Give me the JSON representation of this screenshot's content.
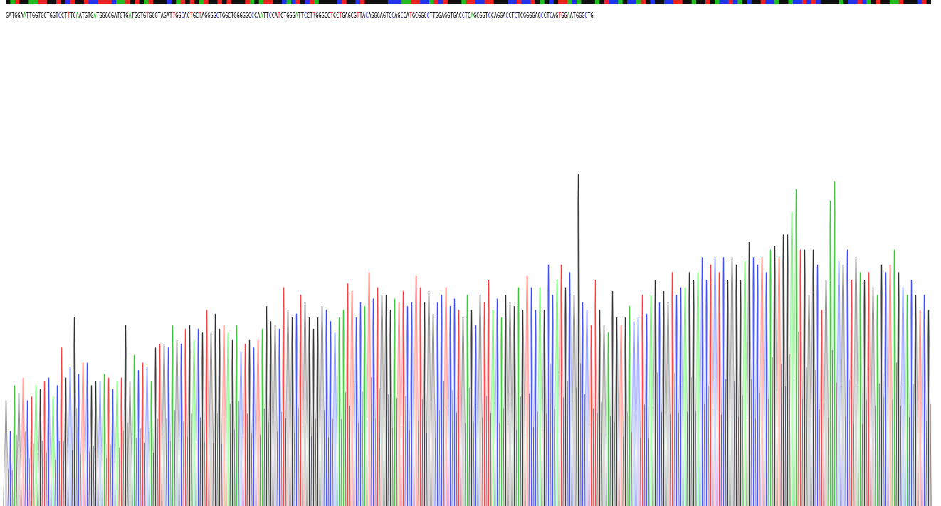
{
  "colors": {
    "A": "#22bb22",
    "C": "#2233ee",
    "G": "#111111",
    "T": "#ee2222"
  },
  "sequence": "GATGGAATTGGTGCTGGTCCTTTCAATGTGATGGGCGATGTGATGGTGTGGGTAGATTGGCACTGCTAGGGGCTGGCTGGGGGCCCAATTCCATCTGGGATTCCTTGGGCCTCCTGAGCGTTACAGGGAGTCCAGCCATGCGGCCTTGGAGGTGACCTCAGCGGTCCAGGACCTCTCGGGGAGCCTCAGTGGAATGGGCTG",
  "chart_data": {
    "type": "line",
    "title": "",
    "xlabel": "",
    "ylabel": "",
    "legend": "none",
    "grid": false,
    "channels": [
      "A",
      "C",
      "G",
      "T"
    ],
    "xlim": [
      0,
      1300
    ],
    "ylim": [
      0,
      1000
    ],
    "peaks": [
      [
        0.5,
        "G",
        280
      ],
      [
        6.5,
        "C",
        200
      ],
      [
        12.5,
        "A",
        320
      ],
      [
        18.5,
        "G",
        300
      ],
      [
        24.5,
        "T",
        340
      ],
      [
        30.5,
        "C",
        280
      ],
      [
        36.5,
        "T",
        290
      ],
      [
        42.5,
        "A",
        320
      ],
      [
        48.5,
        "G",
        310
      ],
      [
        54.5,
        "T",
        330
      ],
      [
        60.5,
        "C",
        340
      ],
      [
        66.5,
        "A",
        290
      ],
      [
        72.5,
        "C",
        320
      ],
      [
        78.5,
        "T",
        420
      ],
      [
        84.5,
        "G",
        340
      ],
      [
        90.5,
        "C",
        370
      ],
      [
        96.5,
        "G",
        500
      ],
      [
        102.5,
        "C",
        350
      ],
      [
        108.5,
        "T",
        380
      ],
      [
        114.5,
        "C",
        380
      ],
      [
        120.5,
        "G",
        320
      ],
      [
        126.5,
        "G",
        330
      ],
      [
        132.5,
        "C",
        330
      ],
      [
        138.5,
        "A",
        350
      ],
      [
        144.5,
        "T",
        340
      ],
      [
        150.5,
        "C",
        310
      ],
      [
        156.5,
        "A",
        330
      ],
      [
        162.5,
        "T",
        340
      ],
      [
        168.5,
        "G",
        480
      ],
      [
        174.5,
        "G",
        330
      ],
      [
        180.5,
        "A",
        400
      ],
      [
        186.5,
        "C",
        360
      ],
      [
        192.5,
        "T",
        380
      ],
      [
        198.5,
        "C",
        370
      ],
      [
        204.5,
        "A",
        330
      ],
      [
        210.5,
        "G",
        420
      ],
      [
        216.5,
        "T",
        430
      ],
      [
        222.5,
        "G",
        430
      ],
      [
        228.5,
        "C",
        420
      ],
      [
        234.5,
        "A",
        480
      ],
      [
        240.5,
        "G",
        440
      ],
      [
        246.5,
        "C",
        430
      ],
      [
        252.5,
        "T",
        470
      ],
      [
        258.5,
        "G",
        480
      ],
      [
        264.5,
        "A",
        440
      ],
      [
        270.5,
        "C",
        470
      ],
      [
        276.5,
        "G",
        460
      ],
      [
        282.5,
        "T",
        520
      ],
      [
        288.5,
        "G",
        460
      ],
      [
        294.5,
        "G",
        510
      ],
      [
        300.5,
        "G",
        470
      ],
      [
        306.5,
        "T",
        480
      ],
      [
        312.5,
        "A",
        460
      ],
      [
        318.5,
        "G",
        440
      ],
      [
        324.5,
        "A",
        480
      ],
      [
        330.5,
        "C",
        410
      ],
      [
        336.5,
        "T",
        430
      ],
      [
        342.5,
        "G",
        440
      ],
      [
        348.5,
        "C",
        420
      ],
      [
        354.5,
        "T",
        440
      ],
      [
        360.5,
        "A",
        470
      ],
      [
        366.5,
        "G",
        530
      ],
      [
        372.5,
        "G",
        490
      ],
      [
        378.5,
        "G",
        480
      ],
      [
        384.5,
        "C",
        470
      ],
      [
        390.5,
        "T",
        580
      ],
      [
        396.5,
        "G",
        520
      ],
      [
        402.5,
        "G",
        500
      ],
      [
        408.5,
        "C",
        510
      ],
      [
        414.5,
        "T",
        560
      ],
      [
        420.5,
        "G",
        540
      ],
      [
        426.5,
        "G",
        500
      ],
      [
        432.5,
        "G",
        470
      ],
      [
        438.5,
        "G",
        500
      ],
      [
        444.5,
        "G",
        530
      ],
      [
        450.5,
        "C",
        520
      ],
      [
        456.5,
        "C",
        490
      ],
      [
        462.5,
        "C",
        460
      ],
      [
        468.5,
        "A",
        500
      ],
      [
        474.5,
        "A",
        520
      ],
      [
        480.5,
        "T",
        590
      ],
      [
        486.5,
        "T",
        570
      ],
      [
        492.5,
        "C",
        500
      ],
      [
        498.5,
        "C",
        540
      ],
      [
        504.5,
        "A",
        530
      ],
      [
        510.5,
        "T",
        620
      ],
      [
        516.5,
        "C",
        550
      ],
      [
        522.5,
        "T",
        580
      ],
      [
        528.5,
        "G",
        560
      ],
      [
        534.5,
        "G",
        560
      ],
      [
        540.5,
        "G",
        520
      ],
      [
        546.5,
        "A",
        550
      ],
      [
        552.5,
        "T",
        540
      ],
      [
        558.5,
        "T",
        570
      ],
      [
        564.5,
        "C",
        530
      ],
      [
        570.5,
        "C",
        540
      ],
      [
        576.5,
        "T",
        610
      ],
      [
        582.5,
        "T",
        580
      ],
      [
        588.5,
        "G",
        540
      ],
      [
        594.5,
        "G",
        570
      ],
      [
        600.5,
        "G",
        510
      ],
      [
        606.5,
        "C",
        540
      ],
      [
        612.5,
        "C",
        560
      ],
      [
        618.5,
        "T",
        580
      ],
      [
        624.5,
        "C",
        530
      ],
      [
        630.5,
        "C",
        550
      ],
      [
        636.5,
        "T",
        520
      ],
      [
        642.5,
        "G",
        500
      ],
      [
        648.5,
        "A",
        560
      ],
      [
        654.5,
        "G",
        520
      ],
      [
        660.5,
        "C",
        480
      ],
      [
        666.5,
        "G",
        560
      ],
      [
        672.5,
        "T",
        540
      ],
      [
        678.5,
        "T",
        600
      ],
      [
        684.5,
        "A",
        520
      ],
      [
        690.5,
        "C",
        550
      ],
      [
        696.5,
        "A",
        500
      ],
      [
        702.5,
        "G",
        560
      ],
      [
        708.5,
        "G",
        540
      ],
      [
        714.5,
        "G",
        530
      ],
      [
        720.5,
        "A",
        580
      ],
      [
        726.5,
        "G",
        520
      ],
      [
        732.5,
        "T",
        610
      ],
      [
        738.5,
        "C",
        580
      ],
      [
        744.5,
        "C",
        520
      ],
      [
        750.5,
        "A",
        580
      ],
      [
        756.5,
        "G",
        520
      ],
      [
        762.5,
        "C",
        640
      ],
      [
        768.5,
        "C",
        560
      ],
      [
        774.5,
        "A",
        600
      ],
      [
        780.5,
        "T",
        640
      ],
      [
        786.5,
        "G",
        580
      ],
      [
        792.5,
        "C",
        620
      ],
      [
        798.5,
        "G",
        560
      ],
      [
        804.5,
        "G",
        880
      ],
      [
        810.5,
        "C",
        540
      ],
      [
        816.5,
        "C",
        520
      ],
      [
        822.5,
        "T",
        480
      ],
      [
        828.5,
        "T",
        600
      ],
      [
        834.5,
        "G",
        520
      ],
      [
        840.5,
        "G",
        480
      ],
      [
        846.5,
        "A",
        460
      ],
      [
        852.5,
        "G",
        570
      ],
      [
        858.5,
        "G",
        500
      ],
      [
        864.5,
        "T",
        480
      ],
      [
        870.5,
        "G",
        500
      ],
      [
        876.5,
        "A",
        530
      ],
      [
        882.5,
        "C",
        490
      ],
      [
        888.5,
        "C",
        500
      ],
      [
        894.5,
        "T",
        560
      ],
      [
        900.5,
        "C",
        510
      ],
      [
        906.5,
        "A",
        560
      ],
      [
        912.5,
        "G",
        600
      ],
      [
        918.5,
        "C",
        540
      ],
      [
        924.5,
        "G",
        570
      ],
      [
        930.5,
        "G",
        540
      ],
      [
        936.5,
        "T",
        620
      ],
      [
        942.5,
        "C",
        560
      ],
      [
        948.5,
        "C",
        580
      ],
      [
        954.5,
        "A",
        580
      ],
      [
        960.5,
        "G",
        620
      ],
      [
        966.5,
        "G",
        600
      ],
      [
        972.5,
        "A",
        620
      ],
      [
        978.5,
        "C",
        660
      ],
      [
        984.5,
        "C",
        600
      ],
      [
        990.5,
        "T",
        640
      ],
      [
        996.5,
        "C",
        660
      ],
      [
        1002.5,
        "T",
        620
      ],
      [
        1008.5,
        "C",
        660
      ],
      [
        1014.5,
        "G",
        600
      ],
      [
        1020.5,
        "G",
        660
      ],
      [
        1026.5,
        "G",
        640
      ],
      [
        1032.5,
        "G",
        600
      ],
      [
        1038.5,
        "A",
        650
      ],
      [
        1044.5,
        "G",
        700
      ],
      [
        1050.5,
        "C",
        660
      ],
      [
        1056.5,
        "C",
        640
      ],
      [
        1062.5,
        "T",
        660
      ],
      [
        1068.5,
        "C",
        620
      ],
      [
        1074.5,
        "A",
        680
      ],
      [
        1080.5,
        "G",
        690
      ],
      [
        1086.5,
        "T",
        660
      ],
      [
        1092.5,
        "G",
        720
      ],
      [
        1098.5,
        "G",
        720
      ],
      [
        1104.5,
        "A",
        780
      ],
      [
        1110.5,
        "A",
        840
      ],
      [
        1116.5,
        "T",
        680
      ],
      [
        1122.5,
        "G",
        680
      ],
      [
        1128.5,
        "G",
        560
      ],
      [
        1134.5,
        "G",
        680
      ],
      [
        1140.5,
        "C",
        640
      ],
      [
        1146.5,
        "T",
        520
      ],
      [
        1152.5,
        "G",
        600
      ],
      [
        1158.5,
        "A",
        810
      ],
      [
        1164.5,
        "A",
        860
      ],
      [
        1170.5,
        "C",
        650
      ],
      [
        1176.5,
        "G",
        640
      ],
      [
        1182.5,
        "C",
        680
      ],
      [
        1188.5,
        "T",
        600
      ],
      [
        1194.5,
        "G",
        660
      ],
      [
        1200.5,
        "A",
        620
      ],
      [
        1206.5,
        "G",
        600
      ],
      [
        1212.5,
        "T",
        620
      ],
      [
        1218.5,
        "G",
        580
      ],
      [
        1224.5,
        "A",
        560
      ],
      [
        1230.5,
        "G",
        640
      ],
      [
        1236.5,
        "C",
        620
      ],
      [
        1242.5,
        "T",
        640
      ],
      [
        1248.5,
        "A",
        680
      ],
      [
        1254.5,
        "G",
        620
      ],
      [
        1260.5,
        "C",
        580
      ],
      [
        1266.5,
        "A",
        560
      ],
      [
        1272.5,
        "C",
        600
      ],
      [
        1278.5,
        "G",
        560
      ],
      [
        1284.5,
        "T",
        520
      ],
      [
        1290.5,
        "C",
        560
      ],
      [
        1296.5,
        "G",
        520
      ]
    ]
  }
}
